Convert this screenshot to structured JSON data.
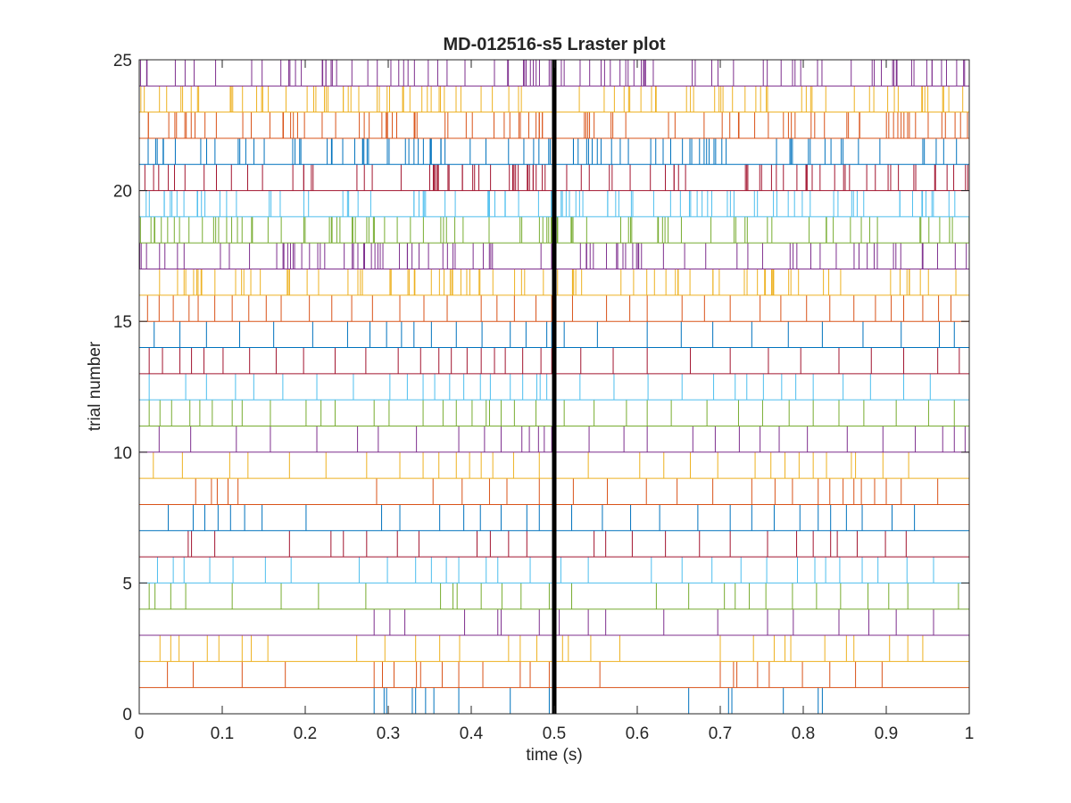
{
  "chart_data": {
    "type": "raster",
    "title": "MD-012516-s5 Lraster plot",
    "xlabel": "time (s)",
    "ylabel": "trial number",
    "xlim": [
      0,
      1
    ],
    "ylim": [
      0,
      25
    ],
    "xticks": [
      "0",
      "0.1",
      "0.2",
      "0.3",
      "0.4",
      "0.5",
      "0.6",
      "0.7",
      "0.8",
      "0.9",
      "1"
    ],
    "yticks": [
      "0",
      "5",
      "10",
      "15",
      "20",
      "25"
    ],
    "event_line_time": 0.5,
    "palette": [
      "#0072BD",
      "#D95319",
      "#EDB120",
      "#7E2F8E",
      "#77AC30",
      "#4DBEEE",
      "#A2142F"
    ],
    "trials": [
      {
        "trial": 1,
        "spikes": [
          0.283,
          0.295,
          0.298,
          0.329,
          0.333,
          0.345,
          0.355,
          0.385,
          0.447,
          0.494,
          0.662,
          0.71,
          0.714,
          0.776,
          0.818,
          0.823
        ]
      },
      {
        "trial": 2,
        "spikes": [
          0.0,
          0.034,
          0.065,
          0.124,
          0.176,
          0.283,
          0.293,
          0.307,
          0.334,
          0.339,
          0.365,
          0.385,
          0.414,
          0.459,
          0.471,
          0.494,
          0.555,
          0.7,
          0.716,
          0.72,
          0.745,
          0.759,
          0.799,
          0.832,
          0.863,
          0.895
        ]
      },
      {
        "trial": 3,
        "spikes": [
          0.025,
          0.038,
          0.048,
          0.082,
          0.096,
          0.124,
          0.135,
          0.155,
          0.262,
          0.296,
          0.333,
          0.362,
          0.386,
          0.445,
          0.459,
          0.479,
          0.5,
          0.51,
          0.517,
          0.544,
          0.579,
          0.7,
          0.74,
          0.765,
          0.778,
          0.785,
          0.826,
          0.852,
          0.861,
          0.904,
          0.926,
          0.944
        ]
      },
      {
        "trial": 4,
        "spikes": [
          0.283,
          0.302,
          0.32,
          0.392,
          0.432,
          0.436,
          0.482,
          0.506,
          0.541,
          0.562,
          0.632,
          0.697,
          0.757,
          0.788,
          0.843,
          0.879,
          0.912,
          0.957
        ]
      },
      {
        "trial": 5,
        "spikes": [
          0.012,
          0.019,
          0.038,
          0.056,
          0.112,
          0.171,
          0.216,
          0.273,
          0.363,
          0.378,
          0.383,
          0.412,
          0.437,
          0.46,
          0.494,
          0.521,
          0.623,
          0.662,
          0.705,
          0.718,
          0.735,
          0.755,
          0.787,
          0.816,
          0.845,
          0.878,
          0.903,
          0.926,
          0.987
        ]
      },
      {
        "trial": 6,
        "spikes": [
          0.022,
          0.041,
          0.054,
          0.085,
          0.113,
          0.152,
          0.183,
          0.265,
          0.299,
          0.333,
          0.352,
          0.37,
          0.385,
          0.418,
          0.432,
          0.471,
          0.508,
          0.541,
          0.617,
          0.654,
          0.69,
          0.725,
          0.756,
          0.793,
          0.814,
          0.827,
          0.844,
          0.871,
          0.89,
          0.925,
          0.957
        ]
      },
      {
        "trial": 7,
        "spikes": [
          0.059,
          0.063,
          0.091,
          0.181,
          0.231,
          0.246,
          0.274,
          0.311,
          0.337,
          0.407,
          0.423,
          0.445,
          0.467,
          0.502,
          0.548,
          0.562,
          0.594,
          0.634,
          0.675,
          0.712,
          0.757,
          0.792,
          0.812,
          0.833,
          0.841,
          0.865,
          0.899,
          0.924
        ]
      },
      {
        "trial": 8,
        "spikes": [
          0.035,
          0.065,
          0.079,
          0.095,
          0.11,
          0.127,
          0.148,
          0.201,
          0.292,
          0.314,
          0.362,
          0.391,
          0.411,
          0.436,
          0.467,
          0.482,
          0.521,
          0.558,
          0.592,
          0.627,
          0.673,
          0.712,
          0.738,
          0.765,
          0.796,
          0.818,
          0.833,
          0.852,
          0.871,
          0.907,
          0.934
        ]
      },
      {
        "trial": 9,
        "spikes": [
          0.068,
          0.087,
          0.094,
          0.107,
          0.119,
          0.286,
          0.354,
          0.389,
          0.422,
          0.443,
          0.482,
          0.523,
          0.564,
          0.611,
          0.648,
          0.691,
          0.738,
          0.766,
          0.787,
          0.818,
          0.832,
          0.848,
          0.861,
          0.87,
          0.886,
          0.9,
          0.918,
          0.962
        ]
      },
      {
        "trial": 10,
        "spikes": [
          0.017,
          0.052,
          0.109,
          0.131,
          0.181,
          0.225,
          0.274,
          0.314,
          0.342,
          0.361,
          0.382,
          0.398,
          0.412,
          0.426,
          0.451,
          0.482,
          0.541,
          0.603,
          0.632,
          0.664,
          0.697,
          0.742,
          0.761,
          0.778,
          0.795,
          0.812,
          0.828,
          0.858,
          0.863,
          0.896,
          0.927
        ]
      },
      {
        "trial": 11,
        "spikes": [
          0.024,
          0.062,
          0.117,
          0.158,
          0.214,
          0.263,
          0.288,
          0.334,
          0.385,
          0.416,
          0.436,
          0.461,
          0.47,
          0.481,
          0.488,
          0.497,
          0.542,
          0.584,
          0.612,
          0.667,
          0.694,
          0.723,
          0.748,
          0.771,
          0.805,
          0.853,
          0.896,
          0.935,
          0.968,
          0.982,
          0.995
        ]
      },
      {
        "trial": 12,
        "spikes": [
          0.012,
          0.025,
          0.039,
          0.061,
          0.073,
          0.088,
          0.112,
          0.124,
          0.158,
          0.201,
          0.219,
          0.236,
          0.283,
          0.301,
          0.342,
          0.366,
          0.382,
          0.401,
          0.418,
          0.422,
          0.436,
          0.452,
          0.478,
          0.512,
          0.548,
          0.587,
          0.612,
          0.641,
          0.684,
          0.722,
          0.751,
          0.783,
          0.812,
          0.843,
          0.873,
          0.912,
          0.951,
          0.982
        ]
      },
      {
        "trial": 13,
        "spikes": [
          0.012,
          0.056,
          0.081,
          0.116,
          0.138,
          0.173,
          0.214,
          0.258,
          0.302,
          0.323,
          0.342,
          0.356,
          0.374,
          0.391,
          0.411,
          0.423,
          0.447,
          0.462,
          0.479,
          0.483,
          0.491,
          0.531,
          0.572,
          0.613,
          0.654,
          0.692,
          0.718,
          0.732,
          0.752,
          0.774,
          0.791,
          0.812,
          0.848,
          0.881,
          0.921,
          0.953
        ]
      },
      {
        "trial": 14,
        "spikes": [
          0.012,
          0.028,
          0.049,
          0.063,
          0.078,
          0.101,
          0.133,
          0.165,
          0.198,
          0.236,
          0.273,
          0.312,
          0.339,
          0.361,
          0.376,
          0.395,
          0.412,
          0.428,
          0.441,
          0.462,
          0.484,
          0.497,
          0.532,
          0.571,
          0.612,
          0.664,
          0.712,
          0.758,
          0.797,
          0.843,
          0.882,
          0.921,
          0.962,
          0.988
        ]
      },
      {
        "trial": 15,
        "spikes": [
          0.018,
          0.049,
          0.081,
          0.121,
          0.162,
          0.209,
          0.251,
          0.278,
          0.298,
          0.316,
          0.331,
          0.352,
          0.382,
          0.413,
          0.447,
          0.466,
          0.491,
          0.497,
          0.512,
          0.552,
          0.612,
          0.653,
          0.691,
          0.738,
          0.782,
          0.823,
          0.872,
          0.918,
          0.964,
          0.982
        ]
      },
      {
        "trial": 16,
        "spikes": [
          0.01,
          0.024,
          0.041,
          0.06,
          0.071,
          0.091,
          0.112,
          0.132,
          0.153,
          0.171,
          0.205,
          0.232,
          0.256,
          0.281,
          0.314,
          0.343,
          0.371,
          0.412,
          0.431,
          0.452,
          0.478,
          0.497,
          0.522,
          0.563,
          0.591,
          0.612,
          0.654,
          0.681,
          0.712,
          0.748,
          0.773,
          0.804,
          0.832,
          0.861,
          0.887,
          0.906,
          0.921,
          0.944,
          0.963,
          0.978
        ]
      }
    ],
    "dense_trials": [
      17,
      18,
      19,
      20,
      21,
      22,
      23,
      24,
      25
    ],
    "dense_rates": [
      92,
      92,
      92,
      92,
      92,
      92,
      92,
      92,
      92
    ]
  }
}
